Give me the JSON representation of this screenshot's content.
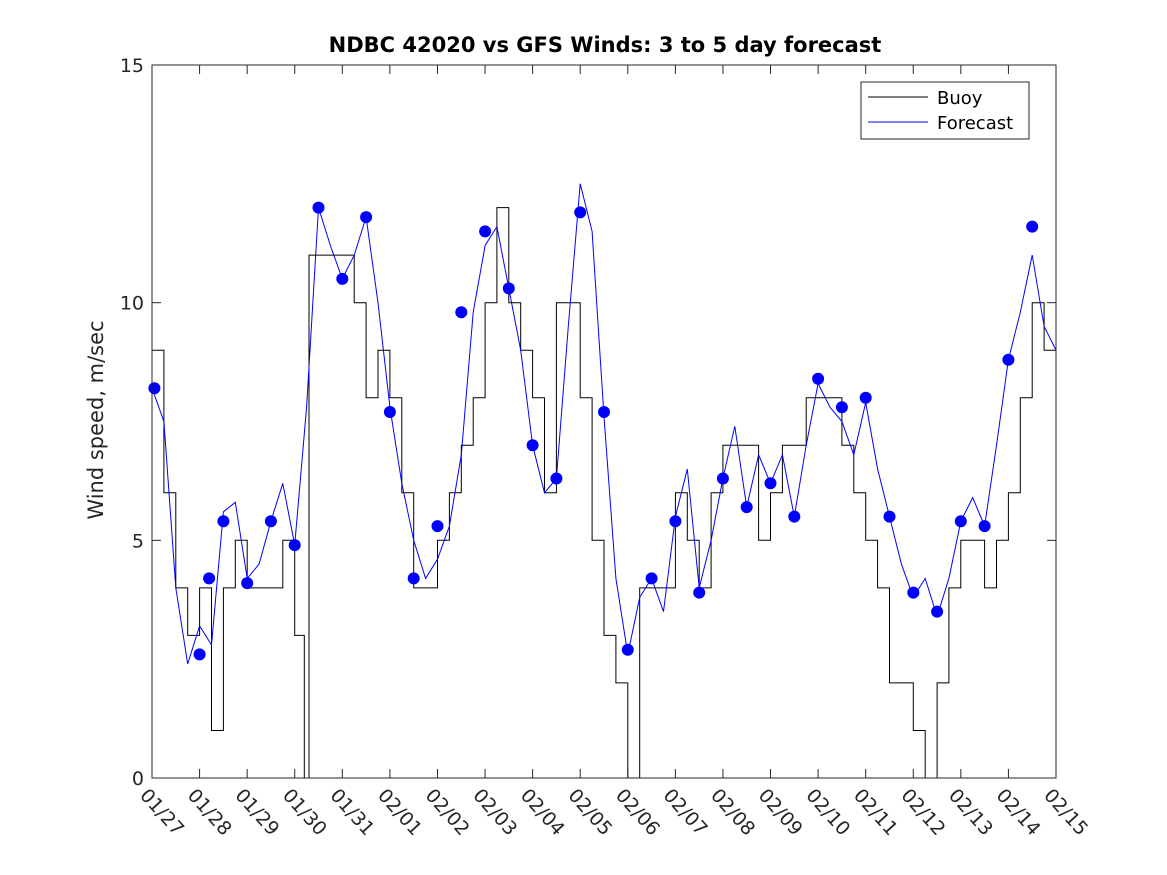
{
  "chart_data": {
    "type": "line",
    "title": "NDBC 42020 vs GFS Winds: 3 to 5 day forecast",
    "xlabel": "",
    "ylabel": "Wind speed, m/sec",
    "xlim": [
      0,
      19
    ],
    "ylim": [
      0,
      15
    ],
    "x_tick_values": [
      0,
      1,
      2,
      3,
      4,
      5,
      6,
      7,
      8,
      9,
      10,
      11,
      12,
      13,
      14,
      15,
      16,
      17,
      18,
      19
    ],
    "x_tick_labels": [
      "01/27",
      "01/28",
      "01/29",
      "01/30",
      "01/31",
      "02/01",
      "02/02",
      "02/03",
      "02/04",
      "02/05",
      "02/06",
      "02/07",
      "02/08",
      "02/09",
      "02/10",
      "02/11",
      "02/12",
      "02/13",
      "02/14",
      "02/15"
    ],
    "y_tick_values": [
      0,
      5,
      10,
      15
    ],
    "y_tick_labels": [
      "0",
      "5",
      "10",
      "15"
    ],
    "legend": {
      "position": "top-right",
      "entries": [
        {
          "label": "Buoy",
          "color": "#000000"
        },
        {
          "label": "Forecast",
          "color": "#0000ff"
        }
      ]
    },
    "colors": {
      "buoy": "#000000",
      "forecast": "#0000ff",
      "marker": "#0000ff"
    },
    "series": [
      {
        "name": "Buoy",
        "x": [
          0.0,
          0.25,
          0.5,
          0.75,
          1.0,
          1.25,
          1.5,
          1.75,
          2.0,
          2.25,
          2.5,
          2.75,
          3.0,
          3.2,
          3.3,
          3.5,
          3.75,
          4.0,
          4.25,
          4.5,
          4.75,
          5.0,
          5.25,
          5.5,
          5.75,
          6.0,
          6.25,
          6.5,
          6.75,
          7.0,
          7.25,
          7.5,
          7.75,
          8.0,
          8.25,
          8.5,
          8.75,
          9.0,
          9.25,
          9.5,
          9.75,
          10.0,
          10.25,
          10.5,
          10.75,
          11.0,
          11.25,
          11.5,
          11.75,
          12.0,
          12.25,
          12.5,
          12.75,
          13.0,
          13.25,
          13.5,
          13.75,
          14.0,
          14.25,
          14.5,
          14.75,
          15.0,
          15.25,
          15.5,
          15.75,
          16.0,
          16.25,
          16.5,
          16.75,
          17.0,
          17.25,
          17.5,
          17.75,
          18.0,
          18.25,
          18.5,
          18.75,
          19.0
        ],
        "values": [
          9,
          6,
          4,
          3,
          4,
          1,
          4,
          5,
          4,
          4,
          4,
          5,
          3,
          0,
          11,
          11,
          11,
          11,
          10,
          8,
          9,
          8,
          6,
          4,
          4,
          5,
          6,
          7,
          8,
          10,
          12,
          10,
          9,
          8,
          6,
          10,
          10,
          8,
          5,
          3,
          2,
          0,
          4,
          4,
          4,
          6,
          5,
          4,
          6,
          7,
          7,
          7,
          5,
          6,
          7,
          7,
          8,
          8,
          8,
          7,
          6,
          5,
          4,
          2,
          2,
          1,
          0,
          2,
          4,
          5,
          5,
          4,
          5,
          6,
          8,
          10,
          9,
          10
        ]
      },
      {
        "name": "Forecast",
        "x": [
          0.0,
          0.25,
          0.5,
          0.75,
          1.0,
          1.25,
          1.5,
          1.75,
          2.0,
          2.25,
          2.5,
          2.75,
          3.0,
          3.25,
          3.5,
          3.75,
          4.0,
          4.25,
          4.5,
          4.75,
          5.0,
          5.25,
          5.5,
          5.75,
          6.0,
          6.25,
          6.5,
          6.75,
          7.0,
          7.25,
          7.5,
          7.75,
          8.0,
          8.25,
          8.5,
          8.75,
          9.0,
          9.25,
          9.5,
          9.75,
          10.0,
          10.25,
          10.5,
          10.75,
          11.0,
          11.25,
          11.5,
          11.75,
          12.0,
          12.25,
          12.5,
          12.75,
          13.0,
          13.25,
          13.5,
          13.75,
          14.0,
          14.25,
          14.5,
          14.75,
          15.0,
          15.25,
          15.5,
          15.75,
          16.0,
          16.25,
          16.5,
          16.75,
          17.0,
          17.25,
          17.5,
          17.75,
          18.0,
          18.25,
          18.5,
          18.75,
          19.0
        ],
        "values": [
          8.2,
          7.5,
          4.0,
          2.4,
          3.2,
          2.8,
          5.6,
          5.8,
          4.2,
          4.5,
          5.4,
          6.2,
          4.9,
          7.8,
          12.0,
          11.2,
          10.5,
          11.0,
          11.8,
          10.0,
          7.8,
          6.2,
          5.0,
          4.2,
          4.6,
          5.3,
          6.8,
          9.8,
          11.2,
          11.6,
          10.3,
          9.0,
          7.0,
          6.0,
          6.3,
          9.5,
          12.5,
          11.5,
          7.6,
          4.2,
          2.6,
          3.8,
          4.2,
          3.5,
          5.5,
          6.5,
          4.0,
          5.0,
          6.3,
          7.4,
          5.7,
          6.8,
          6.2,
          6.8,
          5.5,
          7.0,
          8.3,
          7.8,
          7.5,
          6.8,
          7.9,
          6.5,
          5.5,
          4.5,
          3.8,
          4.2,
          3.4,
          4.2,
          5.4,
          5.9,
          5.3,
          7.0,
          8.8,
          9.8,
          11.0,
          9.5,
          9.0
        ]
      }
    ],
    "markers": {
      "x": [
        0.05,
        1.0,
        1.2,
        1.5,
        2.0,
        2.5,
        3.0,
        3.5,
        4.0,
        4.5,
        5.0,
        5.5,
        6.0,
        6.5,
        7.0,
        7.5,
        8.0,
        8.5,
        9.0,
        9.5,
        10.0,
        10.5,
        11.0,
        11.5,
        12.0,
        12.5,
        13.0,
        13.5,
        14.0,
        14.5,
        15.0,
        15.5,
        16.0,
        16.5,
        17.0,
        17.5,
        18.0,
        18.5
      ],
      "values": [
        8.2,
        2.6,
        4.2,
        5.4,
        4.1,
        5.4,
        4.9,
        12.0,
        10.5,
        11.8,
        7.7,
        4.2,
        5.3,
        9.8,
        11.5,
        10.3,
        7.0,
        6.3,
        11.9,
        7.7,
        2.7,
        4.2,
        5.4,
        3.9,
        6.3,
        5.7,
        6.2,
        5.5,
        8.4,
        7.8,
        8.0,
        5.5,
        3.9,
        3.5,
        5.4,
        5.3,
        8.8,
        11.6
      ]
    }
  }
}
